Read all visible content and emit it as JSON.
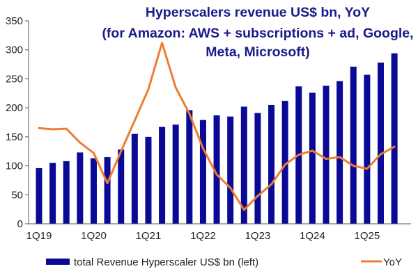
{
  "chart_data": {
    "type": "bar+line",
    "title_lines": [
      "Hyperscalers revenue US$ bn, YoY",
      "(for Amazon: AWS + subscriptions + ad, Google,",
      "Meta, Microsoft)"
    ],
    "categories": [
      "1Q19",
      "2Q19",
      "3Q19",
      "4Q19",
      "1Q20",
      "2Q20",
      "3Q20",
      "4Q20",
      "1Q21",
      "2Q21",
      "3Q21",
      "4Q21",
      "1Q22",
      "2Q22",
      "3Q22",
      "4Q22",
      "1Q23",
      "2Q23",
      "3Q23",
      "4Q23",
      "1Q24",
      "2Q24",
      "3Q24",
      "4Q24",
      "1Q25",
      "2Q25",
      "3Q25"
    ],
    "x_tick_labels": [
      "1Q19",
      "1Q20",
      "1Q21",
      "1Q22",
      "1Q23",
      "1Q24",
      "1Q25"
    ],
    "y_ticks": [
      0,
      50,
      100,
      150,
      200,
      250,
      300,
      350
    ],
    "ylim": [
      0,
      350
    ],
    "series": [
      {
        "name": "total Revenue Hyperscaler US$ bn (left)",
        "kind": "bar",
        "color": "#0a0a96",
        "values": [
          96,
          105,
          108,
          123,
          113,
          115,
          128,
          155,
          150,
          167,
          171,
          196,
          179,
          187,
          185,
          202,
          191,
          205,
          212,
          237,
          226,
          238,
          246,
          271,
          257,
          278,
          294
        ]
      },
      {
        "name": "YoY",
        "kind": "line",
        "color": "#ed7d31",
        "values": [
          165,
          163,
          164,
          140,
          122,
          70,
          125,
          178,
          232,
          312,
          235,
          190,
          130,
          85,
          62,
          24,
          48,
          68,
          102,
          119,
          126,
          112,
          115,
          100,
          95,
          120,
          133
        ]
      }
    ],
    "legend": {
      "bar_label": "total Revenue Hyperscaler US$ bn (left)",
      "line_label": "YoY",
      "placement": "bottom"
    },
    "grid": false
  }
}
